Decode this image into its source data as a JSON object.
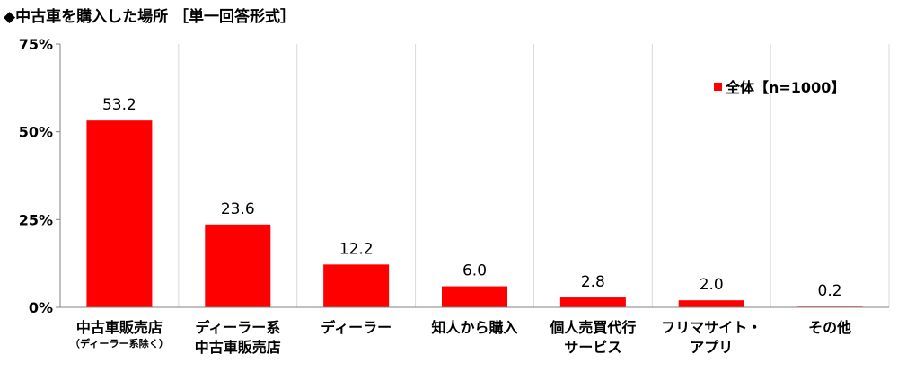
{
  "chart_data": {
    "type": "bar",
    "title": "◆中古車を購入した場所 ［単一回答形式］",
    "categories": [
      [
        "中古車販売店",
        "（ディーラー系除く）"
      ],
      [
        "ディーラー系",
        "中古車販売店"
      ],
      [
        "ディーラー"
      ],
      [
        "知人から購入"
      ],
      [
        "個人売買代行",
        "サービス"
      ],
      [
        "フリマサイト・",
        "アプリ"
      ],
      [
        "その他"
      ]
    ],
    "series": [
      {
        "name": "全体【n=1000】",
        "color": "#ff0000",
        "values": [
          53.2,
          23.6,
          12.2,
          6.0,
          2.8,
          2.0,
          0.2
        ]
      }
    ],
    "data_labels": [
      "53.2",
      "23.6",
      "12.2",
      "6.0",
      "2.8",
      "2.0",
      "0.2"
    ],
    "ylim": [
      0,
      75
    ],
    "yticks": [
      0,
      25,
      50,
      75
    ],
    "ytick_labels": [
      "0%",
      "25%",
      "50%",
      "75%"
    ],
    "grid": "vertical-category-separators",
    "legend_position": "top-right",
    "xlabel": "",
    "ylabel": ""
  }
}
